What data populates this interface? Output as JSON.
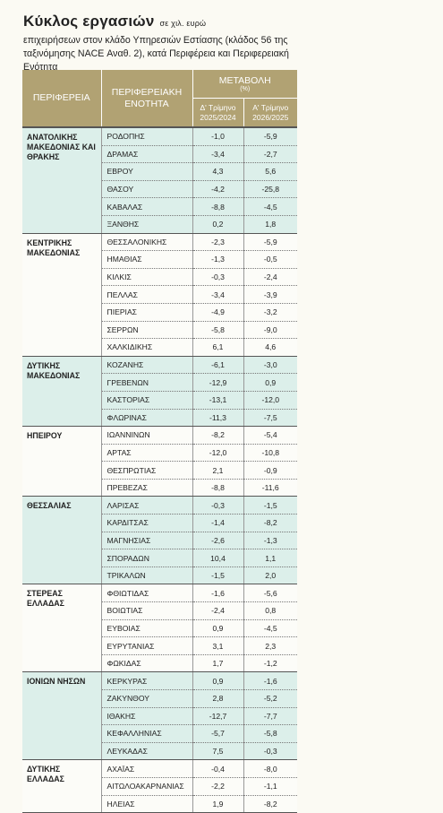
{
  "header": {
    "title": "Κύκλος εργασιών",
    "unit_note": "σε χιλ. ευρώ",
    "subtitle": "επιχειρήσεων στον κλάδο Υπηρεσιών Εστίασης (κλάδος 56 της ταξινόμησης NACE Αναθ. 2), κατά Περιφέρεια και Περιφερειακή Ενότητα"
  },
  "table": {
    "columns": {
      "region": "ΠΕΡΙΦΕΡΕΙΑ",
      "unit": "ΠΕΡΙΦΕΡΕΙΑΚΗ ΕΝΟΤΗΤΑ",
      "change": "ΜΕΤΑΒΟΛΗ",
      "change_unit": "(%)",
      "q4": "Δ' Τρίμηνο 2025/2024",
      "q1": "Α' Τρίμηνο 2026/2025"
    },
    "groups": [
      {
        "region": "ΑΝΑΤΟΛΙΚΗΣ ΜΑΚΕΔΟΝΙΑΣ ΚΑΙ ΘΡΑΚΗΣ",
        "rows": [
          [
            "ΡΟΔΟΠΗΣ",
            "-1,0",
            "-5,9"
          ],
          [
            "ΔΡΑΜΑΣ",
            "-3,4",
            "-2,7"
          ],
          [
            "ΕΒΡΟΥ",
            "4,3",
            "5,6"
          ],
          [
            "ΘΑΣΟΥ",
            "-4,2",
            "-25,8"
          ],
          [
            "ΚΑΒΑΛΑΣ",
            "-8,8",
            "-4,5"
          ],
          [
            "ΞΑΝΘΗΣ",
            "0,2",
            "1,8"
          ]
        ]
      },
      {
        "region": "ΚΕΝΤΡΙΚΗΣ ΜΑΚΕΔΟΝΙΑΣ",
        "rows": [
          [
            "ΘΕΣΣΑΛΟΝΙΚΗΣ",
            "-2,3",
            "-5,9"
          ],
          [
            "ΗΜΑΘΙΑΣ",
            "-1,3",
            "-0,5"
          ],
          [
            "ΚΙΛΚΙΣ",
            "-0,3",
            "-2,4"
          ],
          [
            "ΠΕΛΛΑΣ",
            "-3,4",
            "-3,9"
          ],
          [
            "ΠΙΕΡΙΑΣ",
            "-4,9",
            "-3,2"
          ],
          [
            "ΣΕΡΡΩΝ",
            "-5,8",
            "-9,0"
          ],
          [
            "ΧΑΛΚΙΔΙΚΗΣ",
            "6,1",
            "4,6"
          ]
        ]
      },
      {
        "region": "ΔΥΤΙΚΗΣ ΜΑΚΕΔΟΝΙΑΣ",
        "rows": [
          [
            "ΚΟΖΑΝΗΣ",
            "-6,1",
            "-3,0"
          ],
          [
            "ΓΡΕΒΕΝΩΝ",
            "-12,9",
            "0,9"
          ],
          [
            "ΚΑΣΤΟΡΙΑΣ",
            "-13,1",
            "-12,0"
          ],
          [
            "ΦΛΩΡΙΝΑΣ",
            "-11,3",
            "-7,5"
          ]
        ]
      },
      {
        "region": "ΗΠΕΙΡΟΥ",
        "rows": [
          [
            "ΙΩΑΝΝΙΝΩΝ",
            "-8,2",
            "-5,4"
          ],
          [
            "ΑΡΤΑΣ",
            "-12,0",
            "-10,8"
          ],
          [
            "ΘΕΣΠΡΩΤΙΑΣ",
            "2,1",
            "-0,9"
          ],
          [
            "ΠΡΕΒΕΖΑΣ",
            "-8,8",
            "-11,6"
          ]
        ]
      },
      {
        "region": "ΘΕΣΣΑΛΙΑΣ",
        "rows": [
          [
            "ΛΑΡΙΣΑΣ",
            "-0,3",
            "-1,5"
          ],
          [
            "ΚΑΡΔΙΤΣΑΣ",
            "-1,4",
            "-8,2"
          ],
          [
            "ΜΑΓΝΗΣΙΑΣ",
            "-2,6",
            "-1,3"
          ],
          [
            "ΣΠΟΡΑΔΩΝ",
            "10,4",
            "1,1"
          ],
          [
            "ΤΡΙΚΑΛΩΝ",
            "-1,5",
            "2,0"
          ]
        ]
      },
      {
        "region": "ΣΤΕΡΕΑΣ ΕΛΛΑΔΑΣ",
        "rows": [
          [
            "ΦΘΙΩΤΙΔΑΣ",
            "-1,6",
            "-5,6"
          ],
          [
            "ΒΟΙΩΤΙΑΣ",
            "-2,4",
            "0,8"
          ],
          [
            "ΕΥΒΟΙΑΣ",
            "0,9",
            "-4,5"
          ],
          [
            "ΕΥΡΥΤΑΝΙΑΣ",
            "3,1",
            "2,3"
          ],
          [
            "ΦΩΚΙΔΑΣ",
            "1,7",
            "-1,2"
          ]
        ]
      },
      {
        "region": "ΙΟΝΙΩΝ ΝΗΣΩΝ",
        "rows": [
          [
            "ΚΕΡΚΥΡΑΣ",
            "0,9",
            "-1,6"
          ],
          [
            "ΖΑΚΥΝΘΟΥ",
            "2,8",
            "-5,2"
          ],
          [
            "ΙΘΑΚΗΣ",
            "-12,7",
            "-7,7"
          ],
          [
            "ΚΕΦΑΛΛΗΝΙΑΣ",
            "-5,7",
            "-5,8"
          ],
          [
            "ΛΕΥΚΑΔΑΣ",
            "7,5",
            "-0,3"
          ]
        ]
      },
      {
        "region": "ΔΥΤΙΚΗΣ ΕΛΛΑΔΑΣ",
        "rows": [
          [
            "ΑΧΑΪΑΣ",
            "-0,4",
            "-8,0"
          ],
          [
            "ΑΙΤΩΛΟΑΚΑΡΝΑΝΙΑΣ",
            "-2,2",
            "-1,1"
          ],
          [
            "ΗΛΕΙΑΣ",
            "1,9",
            "-8,2"
          ]
        ]
      }
    ]
  }
}
